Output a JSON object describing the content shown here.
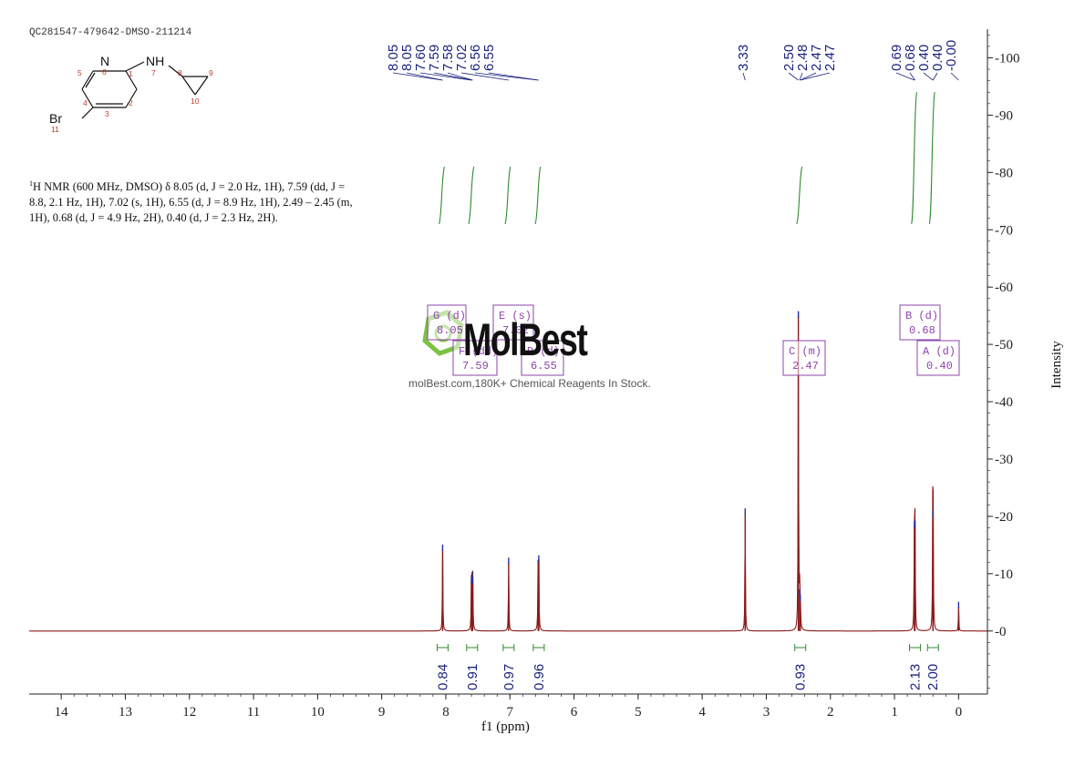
{
  "sample_id": "QC281547-479642-DMSO-211214",
  "structure": {
    "labels": {
      "n_ring": "N",
      "nh": "NH",
      "br": "Br",
      "atom_numbers": [
        "1",
        "2",
        "3",
        "4",
        "5",
        "6",
        "7",
        "8",
        "9",
        "10",
        "11"
      ]
    }
  },
  "description": {
    "sup": "1",
    "text": "H NMR (600 MHz, DMSO) δ 8.05 (d, J = 2.0 Hz, 1H), 7.59 (dd, J = 8.8, 2.1 Hz, 1H), 7.02 (s, 1H), 6.55 (d, J = 8.9 Hz, 1H), 2.49 – 2.45 (m, 1H), 0.68 (d, J = 4.9 Hz, 2H), 0.40 (d, J = 2.3 Hz, 2H)."
  },
  "watermark": {
    "brand": "MolBest",
    "tagline": "molBest.com,180K+ Chemical Reagents In Stock."
  },
  "colors": {
    "spectrum": "#8b1a1a",
    "integral": "#2e8b2e",
    "peak_label": "#1a237e",
    "multiplet_box": "#8e44ad",
    "axis": "#222222"
  },
  "chart_data": {
    "type": "line",
    "xlabel": "f1 (ppm)",
    "ylabel": "Intensity",
    "xlim": [
      14.5,
      -0.45
    ],
    "ylim": [
      -11,
      105
    ],
    "x_ticks": [
      14,
      13,
      12,
      11,
      10,
      9,
      8,
      7,
      6,
      5,
      4,
      3,
      2,
      1,
      0
    ],
    "y_ticks": [
      0,
      10,
      20,
      30,
      40,
      50,
      60,
      70,
      80,
      90,
      100
    ],
    "peaks": [
      {
        "ppm": 8.05,
        "height": 14.3
      },
      {
        "ppm": 7.6,
        "height": 8.6
      },
      {
        "ppm": 7.59,
        "height": 9.5
      },
      {
        "ppm": 7.58,
        "height": 8.6
      },
      {
        "ppm": 7.02,
        "height": 12.0
      },
      {
        "ppm": 6.56,
        "height": 11.6
      },
      {
        "ppm": 6.55,
        "height": 12.4
      },
      {
        "ppm": 3.33,
        "height": 20.6
      },
      {
        "ppm": 2.5,
        "height": 55.0
      },
      {
        "ppm": 2.48,
        "height": 6.5
      },
      {
        "ppm": 2.47,
        "height": 5.5
      },
      {
        "ppm": 0.69,
        "height": 18.3
      },
      {
        "ppm": 0.68,
        "height": 18.5
      },
      {
        "ppm": 0.4,
        "height": 20.0
      },
      {
        "ppm": 0.4,
        "height": 20.3
      },
      {
        "ppm": 0.0,
        "height": 4.3
      }
    ],
    "peak_labels": [
      "8.05",
      "8.05",
      "7.60",
      "7.59",
      "7.58",
      "7.02",
      "6.56",
      "6.55",
      "3.33",
      "2.50",
      "2.48",
      "2.47",
      "2.47",
      "0.69",
      "0.68",
      "0.40",
      "0.40",
      "-0.00"
    ],
    "integrals": [
      {
        "ppm": 8.05,
        "value": "0.84"
      },
      {
        "ppm": 7.59,
        "value": "0.91"
      },
      {
        "ppm": 7.02,
        "value": "0.97"
      },
      {
        "ppm": 6.55,
        "value": "0.96"
      },
      {
        "ppm": 2.47,
        "value": "0.93"
      },
      {
        "ppm": 0.68,
        "value": "2.13"
      },
      {
        "ppm": 0.4,
        "value": "2.00"
      }
    ],
    "multiplets": [
      {
        "id": "G",
        "type": "(d)",
        "ppm": "8.05"
      },
      {
        "id": "F",
        "type": "(dd)",
        "ppm": "7.59"
      },
      {
        "id": "E",
        "type": "(s)",
        "ppm": "7.02"
      },
      {
        "id": "D",
        "type": "(d)",
        "ppm": "6.55"
      },
      {
        "id": "C",
        "type": "(m)",
        "ppm": "2.47"
      },
      {
        "id": "B",
        "type": "(d)",
        "ppm": "0.68"
      },
      {
        "id": "A",
        "type": "(d)",
        "ppm": "0.40"
      }
    ]
  }
}
